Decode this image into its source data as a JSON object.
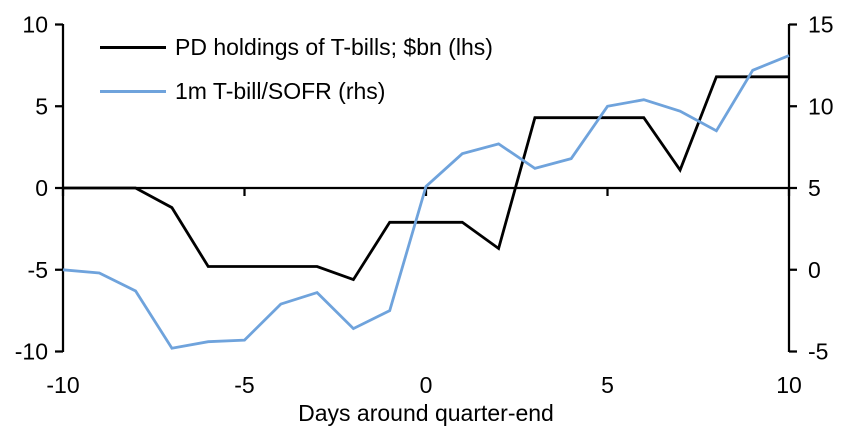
{
  "chart_data": {
    "type": "line",
    "title": "",
    "xlabel": "Days around quarter-end",
    "ylabel_left": "",
    "ylabel_right": "",
    "x": [
      -10,
      -9,
      -8,
      -7,
      -6,
      -5,
      -4,
      -3,
      -2,
      -1,
      0,
      1,
      2,
      3,
      4,
      5,
      6,
      7,
      8,
      9,
      10
    ],
    "x_ticks": [
      -10,
      -5,
      0,
      5,
      10
    ],
    "left_axis": {
      "min": -10,
      "max": 10,
      "ticks": [
        10,
        5,
        0,
        -5,
        -10
      ]
    },
    "right_axis": {
      "min": -5,
      "max": 15,
      "ticks": [
        15,
        10,
        5,
        0,
        -5
      ]
    },
    "grid": false,
    "legend_position": "top-left",
    "series": [
      {
        "name": "PD holdings of T-bills; $bn (lhs)",
        "axis": "lhs",
        "color": "#000000",
        "values": [
          0,
          0,
          0,
          -1.2,
          -4.8,
          -4.8,
          -4.8,
          -4.8,
          -5.6,
          -2.1,
          -2.1,
          -2.1,
          -3.7,
          4.3,
          4.3,
          4.3,
          4.3,
          1.1,
          6.8,
          6.8,
          6.8
        ]
      },
      {
        "name": "1m T-bill/SOFR (rhs)",
        "axis": "rhs",
        "color": "#6fa3dc",
        "values": [
          0.0,
          -0.2,
          -1.3,
          -4.8,
          -4.4,
          -4.3,
          -2.1,
          -1.4,
          -3.6,
          -2.5,
          5.1,
          7.1,
          7.7,
          6.2,
          6.8,
          10.0,
          10.4,
          9.7,
          8.5,
          12.2,
          13.1
        ]
      }
    ]
  },
  "colors": {
    "background": "#ffffff",
    "text": "#000000",
    "axis": "#000000"
  }
}
